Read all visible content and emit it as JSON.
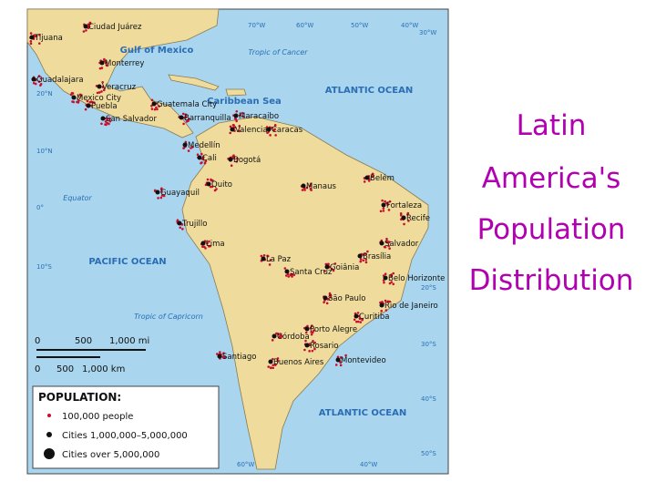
{
  "title": {
    "lines": [
      "Latin",
      "America's",
      "Population",
      "Distribution"
    ]
  },
  "map": {
    "water_labels": [
      "Gulf of Mexico",
      "Caribbean Sea",
      "ATLANTIC OCEAN",
      "PACIFIC OCEAN",
      "ATLANTIC OCEAN",
      "Tropic of Cancer",
      "Equator",
      "Tropic of Capricorn"
    ],
    "graticule_labels": [
      "70°W",
      "60°W",
      "50°W",
      "40°W",
      "30°W",
      "20°N",
      "10°N",
      "0°",
      "10°S",
      "20°S",
      "30°S",
      "40°S",
      "50°S",
      "60°W",
      "40°W"
    ],
    "cities": [
      "Ciudad Juárez",
      "Tijuana",
      "Monterrey",
      "Guadalajara",
      "Veracruz",
      "Mexico City",
      "Puebla",
      "Guatemala City",
      "San Salvador",
      "Barranquilla",
      "Maracaibo",
      "Valencia",
      "Caracas",
      "Medellín",
      "Cali",
      "Bogotá",
      "Quito",
      "Guayaquil",
      "Trujillo",
      "Lima",
      "Belém",
      "Manaus",
      "Fortaleza",
      "Recife",
      "Salvador",
      "Brasília",
      "Goiânia",
      "La Paz",
      "Santa Cruz",
      "Belo Horizonte",
      "São Paulo",
      "Rio de Janeiro",
      "Curitiba",
      "Porto Alegre",
      "Córdoba",
      "Rosario",
      "Santiago",
      "Buenos Aires",
      "Montevideo"
    ],
    "scale": {
      "mi": [
        "0",
        "500",
        "1,000 mi"
      ],
      "km": [
        "0",
        "500",
        "1,000 km"
      ]
    },
    "legend": {
      "title": "POPULATION:",
      "items": [
        "100,000 people",
        "Cities 1,000,000–5,000,000",
        "Cities over 5,000,000"
      ]
    }
  }
}
